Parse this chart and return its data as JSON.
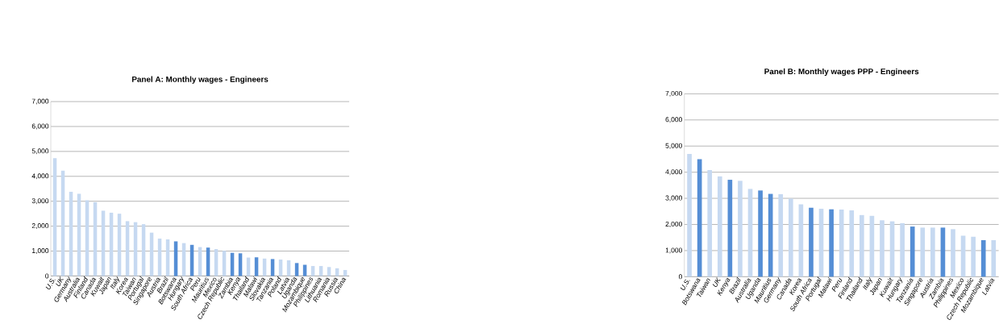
{
  "chart_data": [
    {
      "type": "bar",
      "title": "Panel A: Monthly wages - Engineers",
      "categories": [
        "U.S.",
        "UK",
        "Germany",
        "Australia",
        "Finland",
        "Canada",
        "Kuwait",
        "Japan",
        "Italy",
        "Korea",
        "Taiwan",
        "Portugal",
        "Singapore",
        "Austria",
        "Brazil",
        "Botswana",
        "Hungary",
        "South Africa",
        "Peru",
        "Mauritius",
        "Mexico",
        "Czech Republic",
        "Zambia",
        "Kenya",
        "Thailand",
        "Malawi",
        "Slovakia",
        "Tanzania",
        "Poland",
        "Latvia",
        "Uganda",
        "Mozambique",
        "Philippines",
        "Lithuania",
        "Romania",
        "Russia",
        "China"
      ],
      "values": [
        4730,
        4230,
        3380,
        3300,
        3040,
        2960,
        2620,
        2540,
        2500,
        2200,
        2160,
        2080,
        1740,
        1500,
        1470,
        1390,
        1320,
        1250,
        1160,
        1140,
        1080,
        1010,
        930,
        910,
        740,
        750,
        700,
        680,
        660,
        630,
        520,
        450,
        400,
        400,
        360,
        310,
        240
      ],
      "colors": [
        "#c6d9f1",
        "#c6d9f1",
        "#c6d9f1",
        "#c6d9f1",
        "#c6d9f1",
        "#c6d9f1",
        "#c6d9f1",
        "#c6d9f1",
        "#c6d9f1",
        "#c6d9f1",
        "#c6d9f1",
        "#c6d9f1",
        "#c6d9f1",
        "#c6d9f1",
        "#c6d9f1",
        "#558ed5",
        "#c6d9f1",
        "#558ed5",
        "#c6d9f1",
        "#558ed5",
        "#c6d9f1",
        "#c6d9f1",
        "#558ed5",
        "#558ed5",
        "#c6d9f1",
        "#558ed5",
        "#c6d9f1",
        "#558ed5",
        "#c6d9f1",
        "#c6d9f1",
        "#558ed5",
        "#558ed5",
        "#c6d9f1",
        "#c6d9f1",
        "#c6d9f1",
        "#c6d9f1",
        "#c6d9f1"
      ],
      "ylim": [
        0,
        7000
      ],
      "yticks": [
        0,
        {
          "value": 1000,
          "label": "1,000"
        },
        {
          "value": 2000,
          "label": "2,000"
        },
        {
          "value": 3000,
          "label": "3,000"
        },
        {
          "value": 4000,
          "label": "4,000"
        },
        {
          "value": 5000,
          "label": "5,000"
        },
        {
          "value": 6000,
          "label": "6,000"
        },
        {
          "value": 7000,
          "label": "7,000"
        }
      ],
      "grid": "y"
    },
    {
      "type": "bar",
      "title": "Panel B: Monthly wages PPP - Engineers",
      "categories": [
        "U.S.",
        "Botswana",
        "Taiwan",
        "UK",
        "Kenya",
        "Brazil",
        "Australia",
        "Uganda",
        "Mauritius",
        "Germany",
        "Canada",
        "Korea",
        "South Africa",
        "Portugal",
        "Malawi",
        "Peru",
        "Finland",
        "Thailand",
        "Italy",
        "Japan",
        "Kuwait",
        "Hungary",
        "Tanzania",
        "Singapore",
        "Austria",
        "Zambia",
        "Philippines",
        "Mexico",
        "Czech Republic",
        "Mozambique",
        "Latvia"
      ],
      "values": [
        4700,
        4500,
        4080,
        3840,
        3710,
        3670,
        3360,
        3300,
        3170,
        3160,
        2990,
        2770,
        2640,
        2600,
        2580,
        2570,
        2540,
        2360,
        2330,
        2160,
        2120,
        2050,
        1920,
        1880,
        1880,
        1880,
        1820,
        1570,
        1530,
        1400,
        1400
      ],
      "colors": [
        "#c6d9f1",
        "#558ed5",
        "#c6d9f1",
        "#c6d9f1",
        "#558ed5",
        "#c6d9f1",
        "#c6d9f1",
        "#558ed5",
        "#558ed5",
        "#c6d9f1",
        "#c6d9f1",
        "#c6d9f1",
        "#558ed5",
        "#c6d9f1",
        "#558ed5",
        "#c6d9f1",
        "#c6d9f1",
        "#c6d9f1",
        "#c6d9f1",
        "#c6d9f1",
        "#c6d9f1",
        "#c6d9f1",
        "#558ed5",
        "#c6d9f1",
        "#c6d9f1",
        "#558ed5",
        "#c6d9f1",
        "#c6d9f1",
        "#c6d9f1",
        "#558ed5",
        "#c6d9f1"
      ],
      "ylim": [
        0,
        7000
      ],
      "yticks": [
        0,
        {
          "value": 1000,
          "label": "1,000"
        },
        {
          "value": 2000,
          "label": "2,000"
        },
        {
          "value": 3000,
          "label": "3,000"
        },
        {
          "value": 4000,
          "label": "4,000"
        },
        {
          "value": 5000,
          "label": "5,000"
        },
        {
          "value": 6000,
          "label": "6,000"
        },
        {
          "value": 7000,
          "label": "7,000"
        }
      ],
      "grid": "y"
    }
  ]
}
